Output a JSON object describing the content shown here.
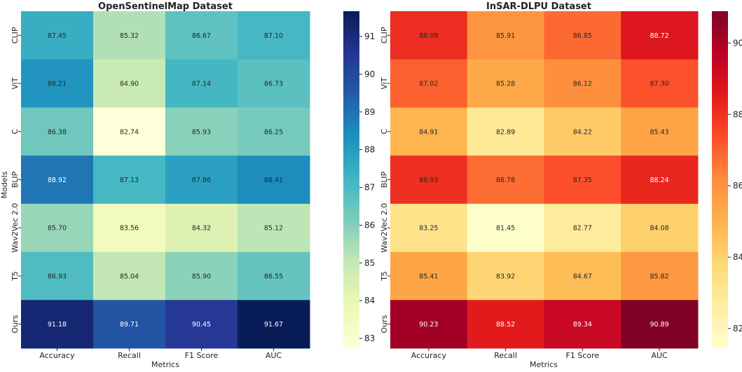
{
  "chart_data": [
    {
      "type": "heatmap",
      "title": "OpenSentinelMap Dataset",
      "xlabel": "Metrics",
      "ylabel": "Models",
      "columns": [
        "Accuracy",
        "Recall",
        "F1 Score",
        "AUC"
      ],
      "rows": [
        "CLIP",
        "ViT",
        "C",
        "BLIP",
        "Wav2Vec 2.0",
        "T5",
        "Ours"
      ],
      "values": [
        [
          87.45,
          85.32,
          86.67,
          87.1
        ],
        [
          88.21,
          84.9,
          87.14,
          86.73
        ],
        [
          86.38,
          82.74,
          85.93,
          86.25
        ],
        [
          88.92,
          87.13,
          87.86,
          88.41
        ],
        [
          85.7,
          83.56,
          84.32,
          85.12
        ],
        [
          86.93,
          85.04,
          85.9,
          86.55
        ],
        [
          91.18,
          89.71,
          90.45,
          91.67
        ]
      ],
      "labels": [
        [
          "87.45",
          "85.32",
          "86.67",
          "87.10"
        ],
        [
          "88.21",
          "84.90",
          "87.14",
          "86.73"
        ],
        [
          "86.38",
          "82.74",
          "85.93",
          "86.25"
        ],
        [
          "88.92",
          "87.13",
          "87.86",
          "88.41"
        ],
        [
          "85.70",
          "83.56",
          "84.32",
          "85.12"
        ],
        [
          "86.93",
          "85.04",
          "85.90",
          "86.55"
        ],
        [
          "91.18",
          "89.71",
          "90.45",
          "91.67"
        ]
      ],
      "colormap": "YlGnBu",
      "vmin": 82.74,
      "vmax": 91.67,
      "colorbar_ticks": [
        "83",
        "84",
        "85",
        "86",
        "87",
        "88",
        "89",
        "90",
        "91"
      ]
    },
    {
      "type": "heatmap",
      "title": "InSAR-DLPU Dataset",
      "xlabel": "Metrics",
      "ylabel": "",
      "columns": [
        "Accuracy",
        "Recall",
        "F1 Score",
        "AUC"
      ],
      "rows": [
        "CLIP",
        "ViT",
        "C",
        "BLIP",
        "Wav2Vec 2.0",
        "T5",
        "Ours"
      ],
      "values": [
        [
          88.09,
          85.91,
          86.85,
          88.72
        ],
        [
          87.02,
          85.28,
          86.12,
          87.3
        ],
        [
          84.91,
          82.89,
          84.22,
          85.43
        ],
        [
          88.03,
          86.78,
          87.35,
          88.24
        ],
        [
          83.25,
          81.45,
          82.77,
          84.08
        ],
        [
          85.41,
          83.92,
          84.67,
          85.82
        ],
        [
          90.23,
          88.52,
          89.34,
          90.89
        ]
      ],
      "labels": [
        [
          "88.09",
          "85.91",
          "86.85",
          "88.72"
        ],
        [
          "87.02",
          "85.28",
          "86.12",
          "87.30"
        ],
        [
          "84.91",
          "82.89",
          "84.22",
          "85.43"
        ],
        [
          "88.03",
          "86.78",
          "87.35",
          "88.24"
        ],
        [
          "83.25",
          "81.45",
          "82.77",
          "84.08"
        ],
        [
          "85.41",
          "83.92",
          "84.67",
          "85.82"
        ],
        [
          "90.23",
          "88.52",
          "89.34",
          "90.89"
        ]
      ],
      "colormap": "YlOrRd",
      "vmin": 81.45,
      "vmax": 90.89,
      "colorbar_ticks": [
        "82",
        "84",
        "86",
        "88",
        "90"
      ]
    }
  ]
}
